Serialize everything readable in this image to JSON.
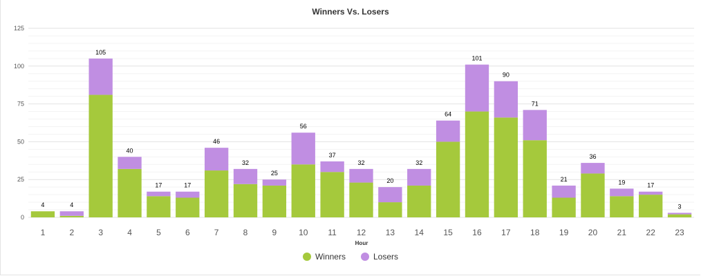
{
  "chart_data": {
    "type": "bar",
    "stacked": true,
    "title": "Winners Vs. Losers",
    "xlabel": "Hour",
    "ylabel": "",
    "ylim": [
      0,
      125
    ],
    "yticks": [
      0,
      25,
      50,
      75,
      100,
      125
    ],
    "categories": [
      "1",
      "2",
      "3",
      "4",
      "5",
      "6",
      "7",
      "8",
      "9",
      "10",
      "11",
      "12",
      "13",
      "14",
      "15",
      "16",
      "17",
      "18",
      "19",
      "20",
      "21",
      "22",
      "23"
    ],
    "series": [
      {
        "name": "Winners",
        "color": "#a5c93c",
        "values": [
          4,
          1,
          81,
          32,
          14,
          13,
          31,
          22,
          21,
          35,
          30,
          23,
          10,
          21,
          50,
          70,
          66,
          51,
          13,
          29,
          14,
          15,
          2
        ]
      },
      {
        "name": "Losers",
        "color": "#c08ee2",
        "values": [
          0,
          3,
          24,
          8,
          3,
          4,
          15,
          10,
          4,
          21,
          7,
          9,
          10,
          11,
          14,
          31,
          24,
          20,
          8,
          7,
          5,
          2,
          1
        ]
      }
    ],
    "totals": [
      4,
      4,
      105,
      40,
      17,
      17,
      46,
      32,
      25,
      56,
      37,
      32,
      20,
      32,
      64,
      101,
      90,
      71,
      21,
      36,
      19,
      17,
      3
    ],
    "grid": true,
    "legend_position": "bottom-center"
  }
}
